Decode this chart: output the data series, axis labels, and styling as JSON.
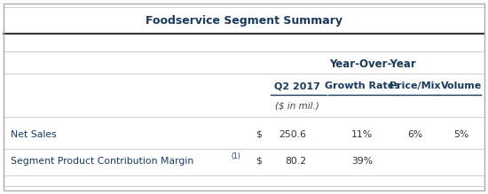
{
  "title": "Foodservice Segment Summary",
  "header_yoy": "Year-Over-Year",
  "col_headers": [
    "Q2 2017",
    "Growth Rates",
    "Price/Mix",
    "Volume"
  ],
  "subheader": "($ in mil.)",
  "rows": [
    {
      "label": "Net Sales",
      "label_plain": "Net Sales",
      "superscript": "",
      "dollar": "$",
      "value": "250.6",
      "growth": "11%",
      "price_mix": "6%",
      "volume": "5%"
    },
    {
      "label": "Segment Product Contribution Margin",
      "label_plain": "Segment Product Contribution Margin",
      "superscript": "(1)",
      "dollar": "$",
      "value": "80.2",
      "growth": "39%",
      "price_mix": "",
      "volume": ""
    }
  ],
  "dark_blue": "#1a3a5c",
  "light_gray": "#c8c8c8",
  "bg_color": "#ffffff",
  "outer_border": "#aaaaaa",
  "thick_line": "#333333",
  "fig_width": 5.5,
  "fig_height": 2.19,
  "dpi": 100
}
